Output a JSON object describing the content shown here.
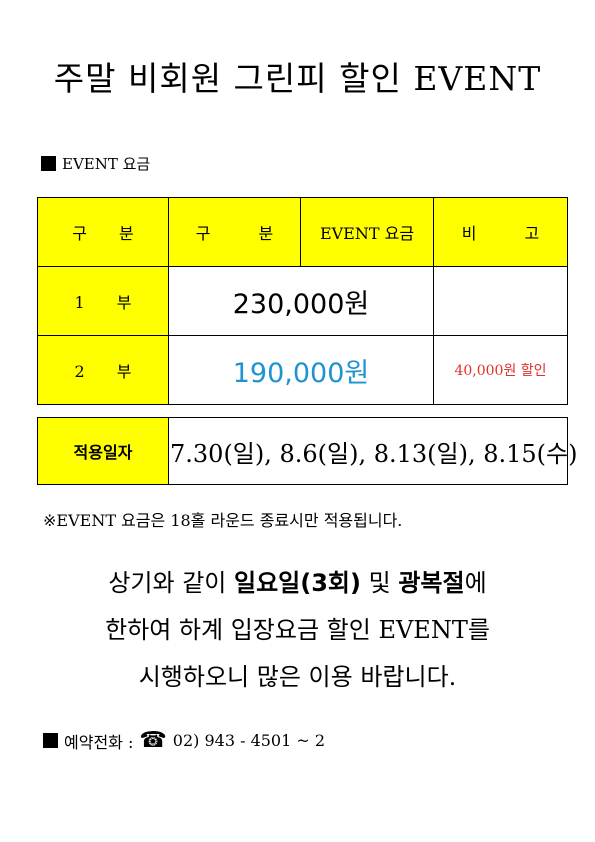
{
  "title": "주말 비회원 그린피 할인 EVENT",
  "section_label": "EVENT 요금",
  "table": {
    "headers": [
      "구분",
      "구분",
      "EVENT 요금",
      "비고"
    ],
    "rows": [
      {
        "label": "1부",
        "price": "230,000원",
        "note": ""
      },
      {
        "label": "2부",
        "price": "190,000원",
        "note": "40,000원 할인"
      }
    ]
  },
  "dates": {
    "label": "적용일자",
    "value": "7.30(일), 8.6(일), 8.13(일), 8.15(수)"
  },
  "footnote": "※EVENT 요금은 18홀 라운드 종료시만 적용됩니다.",
  "announcement": {
    "line1_a": "상기와 같이 ",
    "line1_b": "일요일(3회)",
    "line1_c": " 및 ",
    "line1_d": "광복절",
    "line1_e": "에",
    "line2": "한하여 하계 입장요금 할인 EVENT를",
    "line3": "시행하오니 많은 이용 바랍니다."
  },
  "contact": {
    "label": "예약전화 :",
    "phone_icon": "☎",
    "number": "02) 943 - 4501 ~ 2"
  },
  "colors": {
    "highlight": "#ffff00",
    "price_2": "#1f93d2",
    "discount": "#e0302a"
  }
}
